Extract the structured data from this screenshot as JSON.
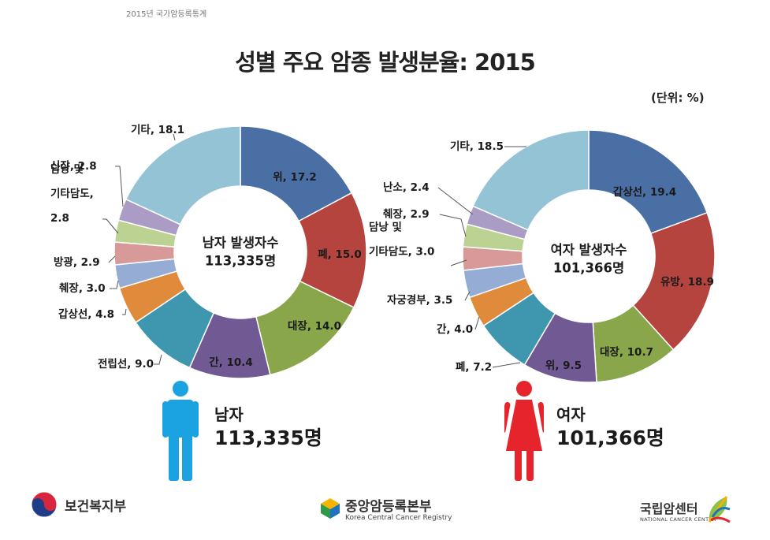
{
  "header": {
    "top_note": "2015년 국가암등록통계",
    "title": "성별 주요 암종 발생분율: 2015",
    "unit": "(단위: %)"
  },
  "chart_data": [
    {
      "type": "pie",
      "variant": "donut",
      "center_label": "남자 발생자수",
      "center_value": "113,335명",
      "start_angle_deg": 0,
      "direction": "clockwise",
      "slices": [
        {
          "name": "위",
          "value": 17.2,
          "color": "#4a6fa5",
          "text": "위, 17.2"
        },
        {
          "name": "폐",
          "value": 15.0,
          "color": "#b5443f",
          "text": "폐, 15.0"
        },
        {
          "name": "대장",
          "value": 14.0,
          "color": "#89a64a",
          "text": "대장, 14.0"
        },
        {
          "name": "간",
          "value": 10.4,
          "color": "#715993",
          "text": "간, 10.4"
        },
        {
          "name": "전립선",
          "value": 9.0,
          "color": "#3e97af",
          "text": "전립선, 9.0"
        },
        {
          "name": "갑상선",
          "value": 4.8,
          "color": "#e08a3c",
          "text": "갑상선, 4.8"
        },
        {
          "name": "췌장",
          "value": 3.0,
          "color": "#95acd4",
          "text": "췌장, 3.0"
        },
        {
          "name": "방광",
          "value": 2.9,
          "color": "#d89a98",
          "text": "방광, 2.9"
        },
        {
          "name": "담낭 및 기타담도",
          "value": 2.8,
          "color": "#bcd293",
          "text": [
            "담낭 및",
            "기타담도,",
            "2.8"
          ]
        },
        {
          "name": "신장",
          "value": 2.8,
          "color": "#ab9cc5",
          "text": "신장, 2.8"
        },
        {
          "name": "기타",
          "value": 18.1,
          "color": "#93c3d4",
          "text": "기타, 18.1"
        }
      ]
    },
    {
      "type": "pie",
      "variant": "donut",
      "center_label": "여자 발생자수",
      "center_value": "101,366명",
      "start_angle_deg": 0,
      "direction": "clockwise",
      "slices": [
        {
          "name": "갑상선",
          "value": 19.4,
          "color": "#4a6fa5",
          "text": "갑상선, 19.4"
        },
        {
          "name": "유방",
          "value": 18.9,
          "color": "#b5443f",
          "text": "유방, 18.9"
        },
        {
          "name": "대장",
          "value": 10.7,
          "color": "#89a64a",
          "text": "대장, 10.7"
        },
        {
          "name": "위",
          "value": 9.5,
          "color": "#715993",
          "text": "위, 9.5"
        },
        {
          "name": "폐",
          "value": 7.2,
          "color": "#3e97af",
          "text": "폐, 7.2"
        },
        {
          "name": "간",
          "value": 4.0,
          "color": "#e08a3c",
          "text": "간, 4.0"
        },
        {
          "name": "자궁경부",
          "value": 3.5,
          "color": "#95acd4",
          "text": "자궁경부, 3.5"
        },
        {
          "name": "담낭 및 기타담도",
          "value": 3.0,
          "color": "#d89a98",
          "text": [
            "담낭 및",
            "기타담도, 3.0"
          ]
        },
        {
          "name": "췌장",
          "value": 2.9,
          "color": "#bcd293",
          "text": "췌장, 2.9"
        },
        {
          "name": "난소",
          "value": 2.4,
          "color": "#ab9cc5",
          "text": "난소, 2.4"
        },
        {
          "name": "기타",
          "value": 18.5,
          "color": "#93c3d4",
          "text": "기타, 18.5"
        }
      ]
    }
  ],
  "gender": {
    "male": {
      "label": "남자",
      "count": "113,335명",
      "color": "#1aa3e0"
    },
    "female": {
      "label": "여자",
      "count": "101,366명",
      "color": "#e6242b"
    }
  },
  "footer": {
    "ministry": "보건복지부",
    "registry_name": "중앙암등록본부",
    "registry_en": "Korea Central Cancer Registry",
    "center_name": "국립암센터",
    "center_en": "NATIONAL CANCER CENTER"
  },
  "icons": [
    "male-person-icon",
    "female-person-icon",
    "ministry-emblem-icon",
    "registry-cube-icon",
    "cancer-center-leaf-icon"
  ]
}
